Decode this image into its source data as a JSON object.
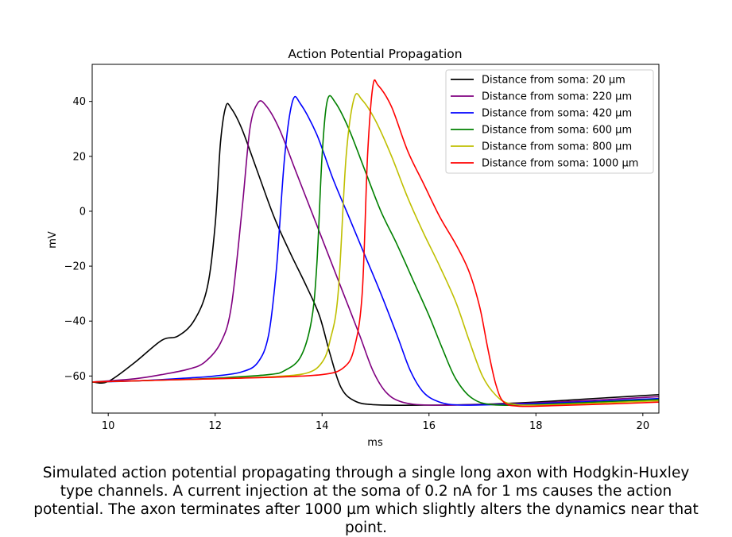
{
  "caption": "Simulated action potential propagating through a single long axon with Hodgkin-Huxley type channels. A current injection at the soma of 0.2 nA for 1 ms causes the action potential. The axon terminates after 1000 µm which slightly alters the dynamics near that point.",
  "chart_data": {
    "type": "line",
    "title": "Action Potential Propagation",
    "xlabel": "ms",
    "ylabel": "mV",
    "xlim": [
      9.7,
      20.3
    ],
    "ylim": [
      -73.5,
      53.5
    ],
    "xticks": [
      10,
      12,
      14,
      16,
      18,
      20
    ],
    "yticks": [
      -60,
      -40,
      -20,
      0,
      20,
      40
    ],
    "grid": false,
    "legend_position": "top-right",
    "series": [
      {
        "name": "Distance from soma: 20 µm",
        "color": "#000000",
        "points": [
          [
            9.7,
            -62.2
          ],
          [
            10.0,
            -62.0
          ],
          [
            10.5,
            -55.0
          ],
          [
            11.0,
            -47.0
          ],
          [
            11.3,
            -45.5
          ],
          [
            11.6,
            -40.0
          ],
          [
            11.85,
            -28.0
          ],
          [
            12.0,
            -5.0
          ],
          [
            12.1,
            25.0
          ],
          [
            12.2,
            38.2
          ],
          [
            12.3,
            37.5
          ],
          [
            12.5,
            30.0
          ],
          [
            12.8,
            14.0
          ],
          [
            13.1,
            -2.0
          ],
          [
            13.4,
            -15.0
          ],
          [
            13.7,
            -27.0
          ],
          [
            13.95,
            -38.0
          ],
          [
            14.15,
            -52.0
          ],
          [
            14.35,
            -64.0
          ],
          [
            14.6,
            -69.0
          ],
          [
            15.0,
            -70.5
          ],
          [
            16.0,
            -70.6
          ],
          [
            17.0,
            -70.3
          ],
          [
            18.0,
            -69.5
          ],
          [
            19.0,
            -68.3
          ],
          [
            20.3,
            -66.8
          ]
        ]
      },
      {
        "name": "Distance from soma: 220 µm",
        "color": "#800080",
        "points": [
          [
            9.7,
            -62.2
          ],
          [
            10.5,
            -61.0
          ],
          [
            11.0,
            -59.5
          ],
          [
            11.5,
            -57.5
          ],
          [
            11.8,
            -55.0
          ],
          [
            12.1,
            -48.0
          ],
          [
            12.3,
            -35.0
          ],
          [
            12.5,
            0.0
          ],
          [
            12.65,
            30.0
          ],
          [
            12.8,
            39.5
          ],
          [
            12.95,
            38.5
          ],
          [
            13.2,
            30.0
          ],
          [
            13.5,
            15.0
          ],
          [
            13.8,
            0.0
          ],
          [
            14.1,
            -15.0
          ],
          [
            14.4,
            -30.0
          ],
          [
            14.7,
            -45.0
          ],
          [
            14.95,
            -58.0
          ],
          [
            15.2,
            -66.0
          ],
          [
            15.5,
            -69.5
          ],
          [
            16.0,
            -70.6
          ],
          [
            17.0,
            -70.4
          ],
          [
            18.0,
            -69.8
          ],
          [
            19.0,
            -68.9
          ],
          [
            20.3,
            -67.5
          ]
        ]
      },
      {
        "name": "Distance from soma: 420 µm",
        "color": "#0000ff",
        "points": [
          [
            9.7,
            -62.2
          ],
          [
            10.5,
            -61.8
          ],
          [
            11.5,
            -60.7
          ],
          [
            12.0,
            -60.0
          ],
          [
            12.5,
            -58.5
          ],
          [
            12.8,
            -55.0
          ],
          [
            13.0,
            -45.0
          ],
          [
            13.15,
            -20.0
          ],
          [
            13.3,
            20.0
          ],
          [
            13.45,
            40.2
          ],
          [
            13.6,
            39.0
          ],
          [
            13.9,
            28.0
          ],
          [
            14.2,
            12.0
          ],
          [
            14.5,
            -2.0
          ],
          [
            14.8,
            -16.0
          ],
          [
            15.1,
            -30.0
          ],
          [
            15.4,
            -45.0
          ],
          [
            15.65,
            -58.0
          ],
          [
            15.9,
            -66.0
          ],
          [
            16.2,
            -69.5
          ],
          [
            16.6,
            -70.6
          ],
          [
            17.5,
            -70.3
          ],
          [
            18.5,
            -69.7
          ],
          [
            19.5,
            -68.9
          ],
          [
            20.3,
            -68.2
          ]
        ]
      },
      {
        "name": "Distance from soma: 600 µm",
        "color": "#008000",
        "points": [
          [
            9.7,
            -62.2
          ],
          [
            11.0,
            -61.5
          ],
          [
            12.0,
            -60.8
          ],
          [
            13.0,
            -59.5
          ],
          [
            13.3,
            -58.0
          ],
          [
            13.6,
            -53.0
          ],
          [
            13.8,
            -40.0
          ],
          [
            13.9,
            -20.0
          ],
          [
            14.0,
            20.0
          ],
          [
            14.1,
            40.5
          ],
          [
            14.25,
            39.5
          ],
          [
            14.5,
            30.0
          ],
          [
            14.8,
            15.0
          ],
          [
            15.1,
            0.0
          ],
          [
            15.4,
            -12.0
          ],
          [
            15.7,
            -25.0
          ],
          [
            16.0,
            -38.0
          ],
          [
            16.25,
            -50.0
          ],
          [
            16.5,
            -61.0
          ],
          [
            16.8,
            -68.0
          ],
          [
            17.2,
            -70.5
          ],
          [
            18.0,
            -70.4
          ],
          [
            19.0,
            -69.6
          ],
          [
            20.3,
            -68.6
          ]
        ]
      },
      {
        "name": "Distance from soma: 800 µm",
        "color": "#bfbf00",
        "points": [
          [
            9.7,
            -62.2
          ],
          [
            11.0,
            -61.5
          ],
          [
            12.0,
            -61.0
          ],
          [
            13.0,
            -60.3
          ],
          [
            13.7,
            -59.0
          ],
          [
            14.0,
            -55.0
          ],
          [
            14.15,
            -47.0
          ],
          [
            14.3,
            -30.0
          ],
          [
            14.45,
            20.0
          ],
          [
            14.6,
            41.2
          ],
          [
            14.75,
            40.5
          ],
          [
            15.0,
            33.0
          ],
          [
            15.3,
            20.0
          ],
          [
            15.6,
            5.0
          ],
          [
            15.9,
            -8.0
          ],
          [
            16.2,
            -20.0
          ],
          [
            16.5,
            -33.0
          ],
          [
            16.75,
            -47.0
          ],
          [
            17.0,
            -60.0
          ],
          [
            17.25,
            -67.0
          ],
          [
            17.5,
            -70.0
          ],
          [
            18.0,
            -70.6
          ],
          [
            19.0,
            -70.0
          ],
          [
            20.3,
            -69.0
          ]
        ]
      },
      {
        "name": "Distance from soma: 1000 µm",
        "color": "#ff0000",
        "points": [
          [
            9.7,
            -62.2
          ],
          [
            11.0,
            -61.5
          ],
          [
            12.0,
            -61.0
          ],
          [
            13.0,
            -60.5
          ],
          [
            14.0,
            -59.5
          ],
          [
            14.4,
            -57.0
          ],
          [
            14.6,
            -50.0
          ],
          [
            14.75,
            -30.0
          ],
          [
            14.85,
            20.0
          ],
          [
            14.95,
            45.5
          ],
          [
            15.05,
            45.8
          ],
          [
            15.3,
            38.0
          ],
          [
            15.6,
            22.0
          ],
          [
            15.9,
            10.0
          ],
          [
            16.2,
            -2.0
          ],
          [
            16.5,
            -12.0
          ],
          [
            16.75,
            -22.0
          ],
          [
            16.95,
            -35.0
          ],
          [
            17.1,
            -50.0
          ],
          [
            17.25,
            -63.0
          ],
          [
            17.4,
            -69.5
          ],
          [
            17.7,
            -71.0
          ],
          [
            18.5,
            -70.7
          ],
          [
            19.5,
            -70.1
          ],
          [
            20.3,
            -69.5
          ]
        ]
      }
    ]
  }
}
